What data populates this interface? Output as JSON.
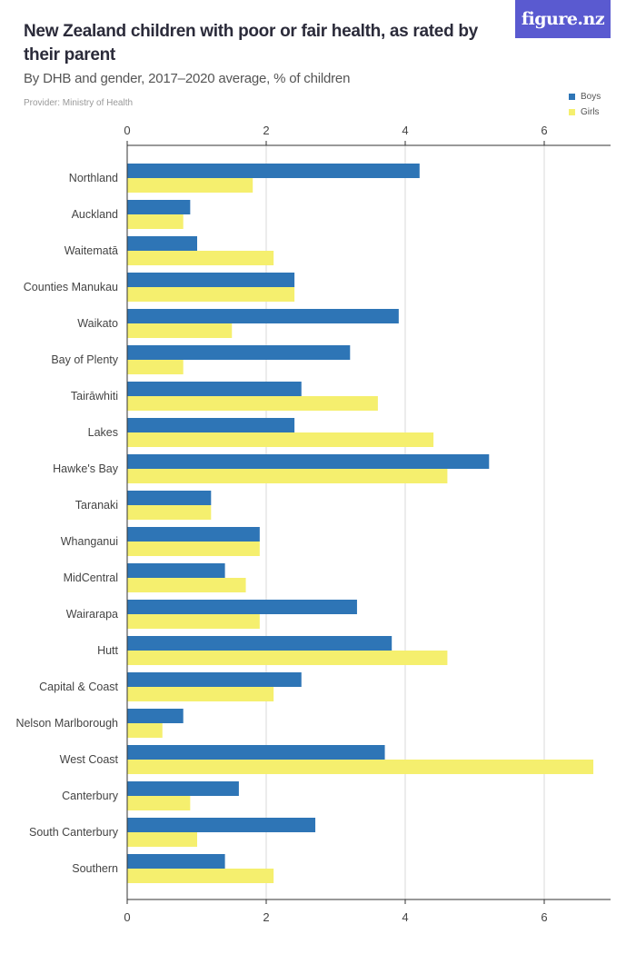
{
  "header": {
    "title": "New Zealand children with poor or fair health, as rated by their parent",
    "subtitle": "By DHB and gender, 2017–2020 average, % of children",
    "provider": "Provider: Ministry of Health",
    "logo": "figure.nz"
  },
  "colors": {
    "boys": "#2e75b6",
    "girls": "#f5ef6e",
    "grid": "#d8d8d8",
    "axis": "#333333"
  },
  "chart_data": {
    "type": "bar",
    "orientation": "horizontal",
    "categories": [
      "Northland",
      "Auckland",
      "Waitematā",
      "Counties Manukau",
      "Waikato",
      "Bay of Plenty",
      "Tairāwhiti",
      "Lakes",
      "Hawke's Bay",
      "Taranaki",
      "Whanganui",
      "MidCentral",
      "Wairarapa",
      "Hutt",
      "Capital & Coast",
      "Nelson Marlborough",
      "West Coast",
      "Canterbury",
      "South Canterbury",
      "Southern"
    ],
    "series": [
      {
        "name": "Boys",
        "values": [
          4.2,
          0.9,
          1.0,
          2.4,
          3.9,
          3.2,
          2.5,
          2.4,
          5.2,
          1.2,
          1.9,
          1.4,
          3.3,
          3.8,
          2.5,
          0.8,
          3.7,
          1.6,
          2.7,
          1.4
        ]
      },
      {
        "name": "Girls",
        "values": [
          1.8,
          0.8,
          2.1,
          2.4,
          1.5,
          0.8,
          3.6,
          4.4,
          4.6,
          1.2,
          1.9,
          1.7,
          1.9,
          4.6,
          2.1,
          0.5,
          6.7,
          0.9,
          1.0,
          2.1
        ]
      }
    ],
    "xticks": [
      0,
      2,
      4,
      6
    ],
    "xlim": [
      0,
      7
    ],
    "grid": true,
    "legend_position": "top-right",
    "xaxis_position": "top and bottom"
  }
}
